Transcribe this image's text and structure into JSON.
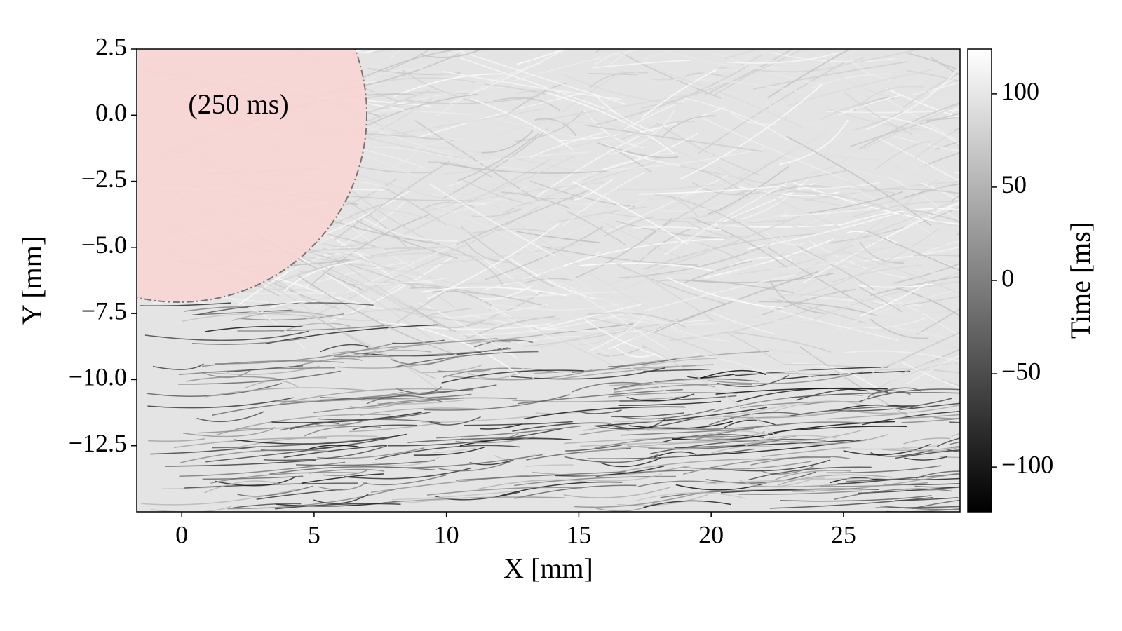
{
  "chart_data": {
    "type": "image",
    "xlabel": "X [mm]",
    "ylabel": "Y [mm]",
    "annotation": "(250 ms)",
    "xlim": [
      -1.7,
      29.4
    ],
    "ylim": [
      -15,
      2.5
    ],
    "xticks": [
      0,
      5,
      10,
      15,
      20,
      25
    ],
    "yticks": [
      {
        "value": -12.5,
        "label": "−12.5"
      },
      {
        "value": -10,
        "label": "−10.0"
      },
      {
        "value": -7.5,
        "label": "−7.5"
      },
      {
        "value": -5,
        "label": "−5.0"
      },
      {
        "value": -2.5,
        "label": "−2.5"
      },
      {
        "value": 0,
        "label": "0.0"
      },
      2.5
    ],
    "colorbar": {
      "label": "Time [ms]",
      "cmap": "gray",
      "lim": [
        -124,
        124
      ],
      "ticks": [
        {
          "value": -100,
          "label": "−100"
        },
        {
          "value": -50,
          "label": "−50"
        },
        0,
        50,
        100
      ]
    }
  }
}
